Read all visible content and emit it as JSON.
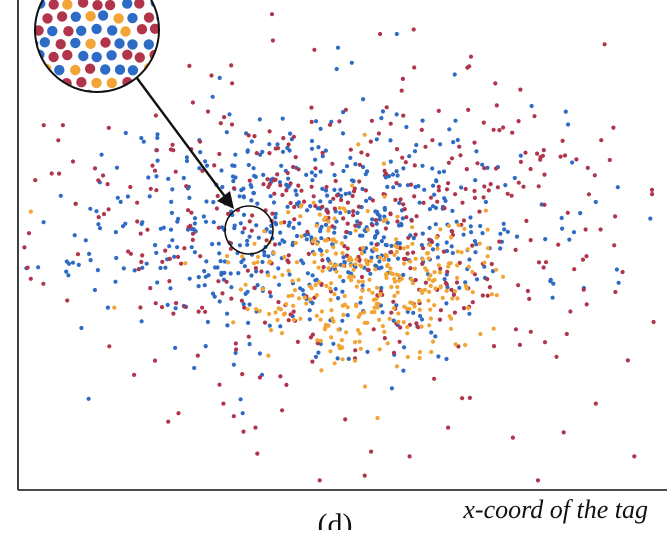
{
  "chart_data": {
    "type": "scatter",
    "title": "",
    "xlabel": "x-coord of the tag",
    "ylabel": "",
    "caption": "(d)",
    "grid": false,
    "legend": "none",
    "xlim": [
      0,
      100
    ],
    "ylim": [
      0,
      100
    ],
    "zoom_inset": {
      "magnified_region_center": [
        34,
        54
      ],
      "description_shown": "magnified view of mixed points"
    },
    "series": [
      {
        "color": "#2e6bc4",
        "cluster": {
          "cx": 46,
          "cy": 55,
          "sx": 17,
          "sy": 12,
          "n": 620,
          "seed": 11
        },
        "outliers": [
          [
            11,
            19
          ],
          [
            35,
            16
          ],
          [
            38,
            24
          ],
          [
            65,
            32
          ],
          [
            72,
            55
          ],
          [
            90,
            60
          ],
          [
            14,
            38
          ],
          [
            52,
            89
          ],
          [
            80,
            80
          ],
          [
            59,
            95
          ]
        ]
      },
      {
        "color": "#b0354b",
        "cluster": {
          "cx": 49,
          "cy": 55,
          "sx": 24,
          "sy": 16,
          "n": 470,
          "seed": 23
        },
        "outliers": [
          [
            4,
            76
          ],
          [
            7,
            76
          ],
          [
            18,
            92
          ],
          [
            25,
            16
          ],
          [
            28,
            28
          ],
          [
            32,
            18
          ],
          [
            37,
            13
          ],
          [
            47,
            2
          ],
          [
            54,
            3
          ],
          [
            61,
            7
          ],
          [
            67,
            13
          ],
          [
            70,
            88
          ],
          [
            81,
            2
          ],
          [
            85,
            12
          ],
          [
            88,
            48
          ],
          [
            90,
            18
          ],
          [
            93,
            57
          ],
          [
            95,
            27
          ],
          [
            96,
            7
          ],
          [
            99,
            35
          ],
          [
            2,
            44
          ],
          [
            12,
            67
          ],
          [
            27,
            71
          ],
          [
            60,
            78
          ],
          [
            55,
            8
          ]
        ]
      },
      {
        "color": "#f2a535",
        "cluster": {
          "cx": 54,
          "cy": 44,
          "sx": 9,
          "sy": 8,
          "n": 330,
          "seed": 37
        },
        "outliers": [
          [
            2,
            58
          ],
          [
            39,
            28
          ],
          [
            54,
            74
          ],
          [
            56,
            15
          ],
          [
            15,
            38
          ],
          [
            57,
            68
          ],
          [
            53,
            72
          ]
        ]
      }
    ]
  }
}
